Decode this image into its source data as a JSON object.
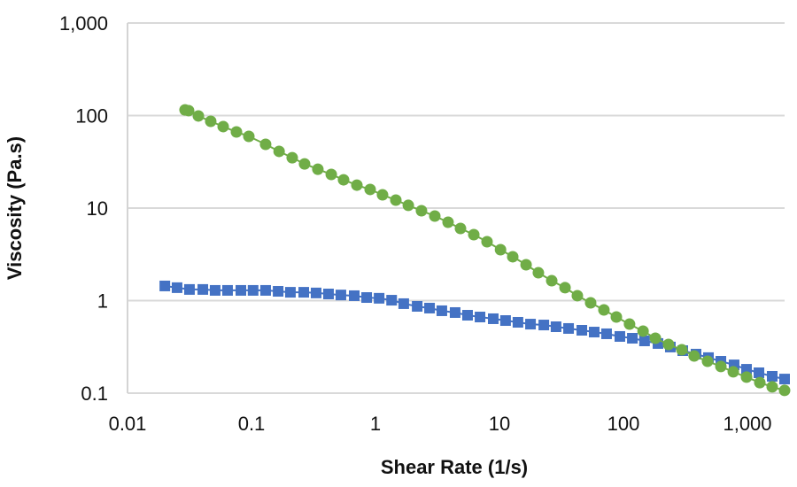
{
  "chart_data": {
    "type": "scatter",
    "title": "",
    "xlabel": "Shear Rate (1/s)",
    "ylabel": "Viscosity (Pa.s)",
    "xscale": "log",
    "yscale": "log",
    "xlim": [
      0.01,
      2000
    ],
    "ylim": [
      0.1,
      1000
    ],
    "grid": "horizontal",
    "legend": "none",
    "x_ticks": [
      {
        "value": 0.01,
        "label": "0.01"
      },
      {
        "value": 0.1,
        "label": "0.1"
      },
      {
        "value": 1,
        "label": "1"
      },
      {
        "value": 10,
        "label": "10"
      },
      {
        "value": 100,
        "label": "100"
      },
      {
        "value": 1000,
        "label": "1,000"
      }
    ],
    "y_ticks": [
      {
        "value": 0.1,
        "label": "0.1"
      },
      {
        "value": 1,
        "label": "1"
      },
      {
        "value": 10,
        "label": "10"
      },
      {
        "value": 100,
        "label": "100"
      },
      {
        "value": 1000,
        "label": "1,000"
      }
    ],
    "series": [
      {
        "name": "series-blue",
        "color": "#4472c4",
        "marker": "square",
        "x": [
          0.02,
          0.0251,
          0.0316,
          0.0405,
          0.0509,
          0.0641,
          0.0821,
          0.103,
          0.13,
          0.164,
          0.206,
          0.264,
          0.332,
          0.418,
          0.526,
          0.674,
          0.849,
          1.07,
          1.35,
          1.69,
          2.17,
          2.73,
          3.43,
          4.39,
          5.53,
          6.97,
          8.91,
          11.2,
          14.1,
          17.8,
          22.8,
          28.6,
          36.1,
          46.2,
          58.1,
          73.1,
          93.6,
          118,
          148,
          190,
          239,
          301,
          385,
          485,
          611,
          781,
          984,
          1239,
          1585,
          1995
        ],
        "y": [
          1.44,
          1.38,
          1.32,
          1.32,
          1.29,
          1.29,
          1.29,
          1.29,
          1.29,
          1.26,
          1.23,
          1.23,
          1.21,
          1.18,
          1.15,
          1.13,
          1.08,
          1.06,
          1.01,
          0.927,
          0.867,
          0.83,
          0.777,
          0.743,
          0.695,
          0.665,
          0.637,
          0.609,
          0.583,
          0.557,
          0.545,
          0.522,
          0.5,
          0.478,
          0.457,
          0.438,
          0.41,
          0.392,
          0.367,
          0.344,
          0.315,
          0.288,
          0.264,
          0.242,
          0.221,
          0.202,
          0.181,
          0.166,
          0.152,
          0.142
        ]
      },
      {
        "name": "series-green",
        "color": "#70ad47",
        "marker": "circle",
        "x": [
          0.0291,
          0.0311,
          0.0373,
          0.0469,
          0.0591,
          0.0756,
          0.0952,
          0.13,
          0.167,
          0.213,
          0.268,
          0.343,
          0.44,
          0.553,
          0.708,
          0.906,
          1.14,
          1.46,
          1.84,
          2.35,
          3.01,
          3.85,
          4.85,
          6.21,
          7.94,
          10.2,
          12.8,
          16.4,
          20.6,
          26.4,
          33.8,
          42.5,
          54.4,
          69.6,
          87.7,
          112,
          144,
          181,
          231,
          296,
          372,
          477,
          611,
          769,
          984,
          1259,
          1585,
          1995
        ],
        "y": [
          115,
          113,
          99,
          86.7,
          76,
          66.5,
          59.6,
          48.9,
          41,
          35,
          30,
          26.3,
          23.1,
          20.2,
          17.7,
          15.9,
          13.9,
          12.2,
          10.7,
          9.36,
          8.2,
          7.03,
          6.02,
          5.16,
          4.33,
          3.55,
          2.98,
          2.44,
          2.0,
          1.64,
          1.38,
          1.13,
          0.946,
          0.794,
          0.665,
          0.557,
          0.468,
          0.392,
          0.336,
          0.294,
          0.252,
          0.221,
          0.194,
          0.17,
          0.149,
          0.13,
          0.117,
          0.107
        ]
      }
    ]
  }
}
